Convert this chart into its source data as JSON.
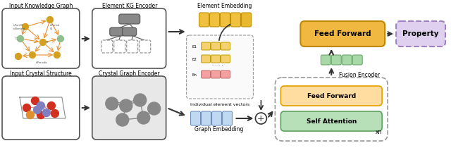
{
  "fig_width": 6.4,
  "fig_height": 2.1,
  "dpi": 100,
  "bg_color": "#ffffff",
  "labels": {
    "input_kg": "Input Knowledge Graph",
    "elem_kg_enc": "Element KG Encoder",
    "elem_emb": "Element Embedding",
    "input_crystal": "Input Crystal Structure",
    "crystal_enc": "Crystal Graph Encoder",
    "graph_emb": "Graph Embedding",
    "indiv_elem": "Individual element vectors",
    "fusion_enc": "Fusion Encoder",
    "feed_forward_top": "Feed Forward",
    "property": "Property",
    "feed_forward_inner": "Feed Forward",
    "self_attention": "Self Attention",
    "xn": "xn",
    "e1": "E1",
    "e2": "E2",
    "en": "En"
  },
  "colors": {
    "kg_graph_orange": "#E8A050",
    "kg_node_gold": "#D4A020",
    "kg_node_green": "#90C090",
    "encoder_gray": "#888888",
    "encoder_bg": "#E0E0E0",
    "elem_emb_yellow": "#F0C040",
    "elem_row_yellow": "#F5D070",
    "elem_row_pink": "#F5A0A0",
    "graph_emb_blue": "#C0D8F0",
    "fusion_box_bg": "#F5F5F5",
    "fusion_box_border": "#888888",
    "feed_forward_top_fill": "#F0B840",
    "feed_forward_top_border": "#C08800",
    "property_fill": "#E0D0F0",
    "property_border": "#A080C0",
    "green_cells": "#A8D8A8",
    "feed_forward_inner_fill": "#FFDDA0",
    "feed_forward_inner_border": "#E0A000",
    "self_attention_fill": "#B8E0B8",
    "self_attention_border": "#60A060",
    "crystal_bg": "#E8E8E8",
    "arrow_color": "#333333"
  }
}
